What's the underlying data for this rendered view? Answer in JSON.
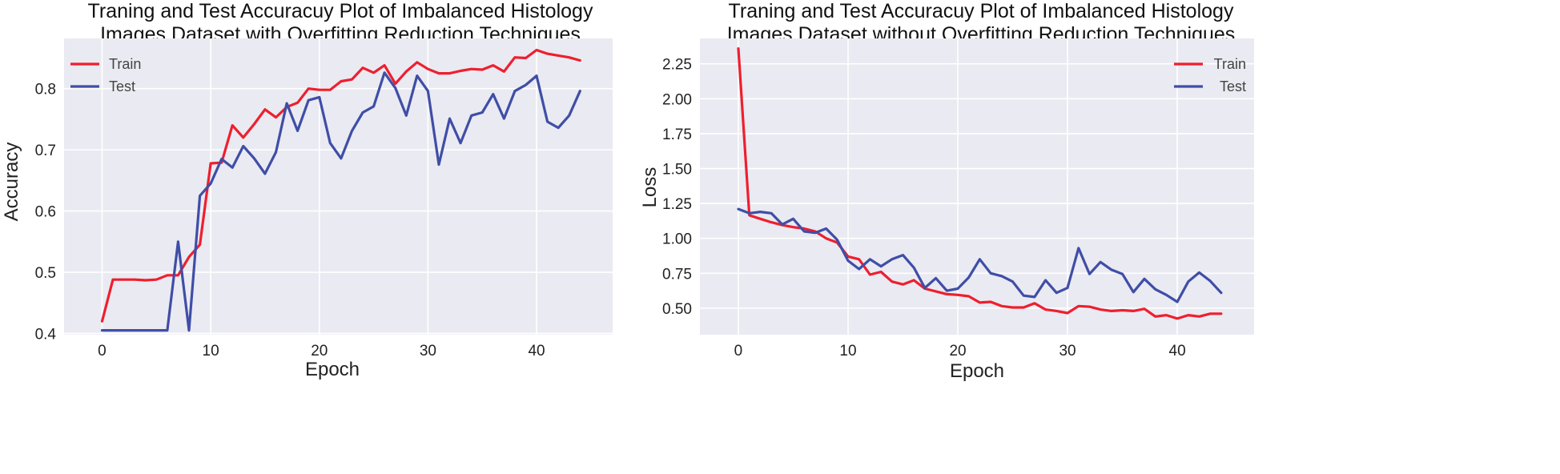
{
  "chart_data": [
    {
      "type": "line",
      "title": "Traning and Test Accuracuy Plot of Imbalanced Histology\n Images Dataset with Overfitting Reduction Techniques",
      "xlabel": "Epoch",
      "ylabel": "Accuracy",
      "xlim": [
        -3.5,
        47
      ],
      "ylim": [
        0.398,
        0.882
      ],
      "xticks": [
        0,
        10,
        20,
        30,
        40
      ],
      "yticks": [
        0.4,
        0.5,
        0.6,
        0.7,
        0.8
      ],
      "ytick_labels": [
        "0.4",
        "0.5",
        "0.6",
        "0.7",
        "0.8"
      ],
      "grid": true,
      "legend": "upper left",
      "x": [
        0,
        1,
        2,
        3,
        4,
        5,
        6,
        7,
        8,
        9,
        10,
        11,
        12,
        13,
        14,
        15,
        16,
        17,
        18,
        19,
        20,
        21,
        22,
        23,
        24,
        25,
        26,
        27,
        28,
        29,
        30,
        31,
        32,
        33,
        34,
        35,
        36,
        37,
        38,
        39,
        40,
        41,
        42,
        43,
        44
      ],
      "series": [
        {
          "name": "Train",
          "color": "#ee1f2e",
          "values": [
            0.42,
            0.488,
            0.488,
            0.488,
            0.487,
            0.488,
            0.495,
            0.495,
            0.525,
            0.545,
            0.678,
            0.679,
            0.74,
            0.72,
            0.742,
            0.766,
            0.753,
            0.77,
            0.777,
            0.8,
            0.798,
            0.798,
            0.812,
            0.815,
            0.834,
            0.826,
            0.838,
            0.808,
            0.828,
            0.843,
            0.832,
            0.825,
            0.825,
            0.829,
            0.832,
            0.831,
            0.838,
            0.828,
            0.851,
            0.85,
            0.863,
            0.857,
            0.854,
            0.851,
            0.846
          ]
        },
        {
          "name": "Test",
          "color": "#3f4ea6",
          "values": [
            0.405,
            0.405,
            0.405,
            0.405,
            0.405,
            0.405,
            0.405,
            0.55,
            0.405,
            0.625,
            0.645,
            0.685,
            0.671,
            0.706,
            0.686,
            0.661,
            0.696,
            0.776,
            0.731,
            0.781,
            0.786,
            0.711,
            0.686,
            0.731,
            0.761,
            0.771,
            0.826,
            0.801,
            0.756,
            0.821,
            0.796,
            0.676,
            0.751,
            0.711,
            0.756,
            0.761,
            0.791,
            0.751,
            0.796,
            0.806,
            0.821,
            0.746,
            0.736,
            0.756,
            0.796
          ]
        }
      ]
    },
    {
      "type": "line",
      "title": "Traning and Test Accuracuy Plot of Imbalanced Histology\n Images Dataset without Overfitting Reduction Techniques",
      "xlabel": "Epoch",
      "ylabel": "Loss",
      "xlim": [
        -3.5,
        47
      ],
      "ylim": [
        0.31,
        2.432
      ],
      "xticks": [
        0,
        10,
        20,
        30,
        40
      ],
      "yticks": [
        0.5,
        0.75,
        1.0,
        1.25,
        1.5,
        1.75,
        2.0,
        2.25
      ],
      "ytick_labels": [
        "0.50",
        "0.75",
        "1.00",
        "1.25",
        "1.50",
        "1.75",
        "2.00",
        "2.25"
      ],
      "grid": true,
      "legend": "upper right",
      "x": [
        0,
        1,
        2,
        3,
        4,
        5,
        6,
        7,
        8,
        9,
        10,
        11,
        12,
        13,
        14,
        15,
        16,
        17,
        18,
        19,
        20,
        21,
        22,
        23,
        24,
        25,
        26,
        27,
        28,
        29,
        30,
        31,
        32,
        33,
        34,
        35,
        36,
        37,
        38,
        39,
        40,
        41,
        42,
        43,
        44
      ],
      "series": [
        {
          "name": "Train",
          "color": "#ee1f2e",
          "values": [
            2.36,
            1.165,
            1.14,
            1.115,
            1.095,
            1.08,
            1.07,
            1.05,
            1.0,
            0.97,
            0.87,
            0.85,
            0.74,
            0.76,
            0.69,
            0.67,
            0.7,
            0.64,
            0.62,
            0.6,
            0.595,
            0.585,
            0.54,
            0.545,
            0.515,
            0.505,
            0.505,
            0.535,
            0.49,
            0.48,
            0.465,
            0.515,
            0.51,
            0.49,
            0.48,
            0.485,
            0.48,
            0.495,
            0.44,
            0.45,
            0.425,
            0.45,
            0.44,
            0.46,
            0.46
          ]
        },
        {
          "name": "Test",
          "color": "#3f4ea6",
          "values": [
            1.21,
            1.18,
            1.19,
            1.18,
            1.1,
            1.14,
            1.05,
            1.04,
            1.07,
            0.99,
            0.84,
            0.78,
            0.85,
            0.8,
            0.85,
            0.88,
            0.79,
            0.645,
            0.715,
            0.625,
            0.64,
            0.72,
            0.85,
            0.75,
            0.73,
            0.69,
            0.59,
            0.58,
            0.7,
            0.61,
            0.645,
            0.93,
            0.745,
            0.83,
            0.775,
            0.745,
            0.615,
            0.71,
            0.635,
            0.595,
            0.545,
            0.69,
            0.755,
            0.695,
            0.61
          ]
        }
      ]
    }
  ]
}
